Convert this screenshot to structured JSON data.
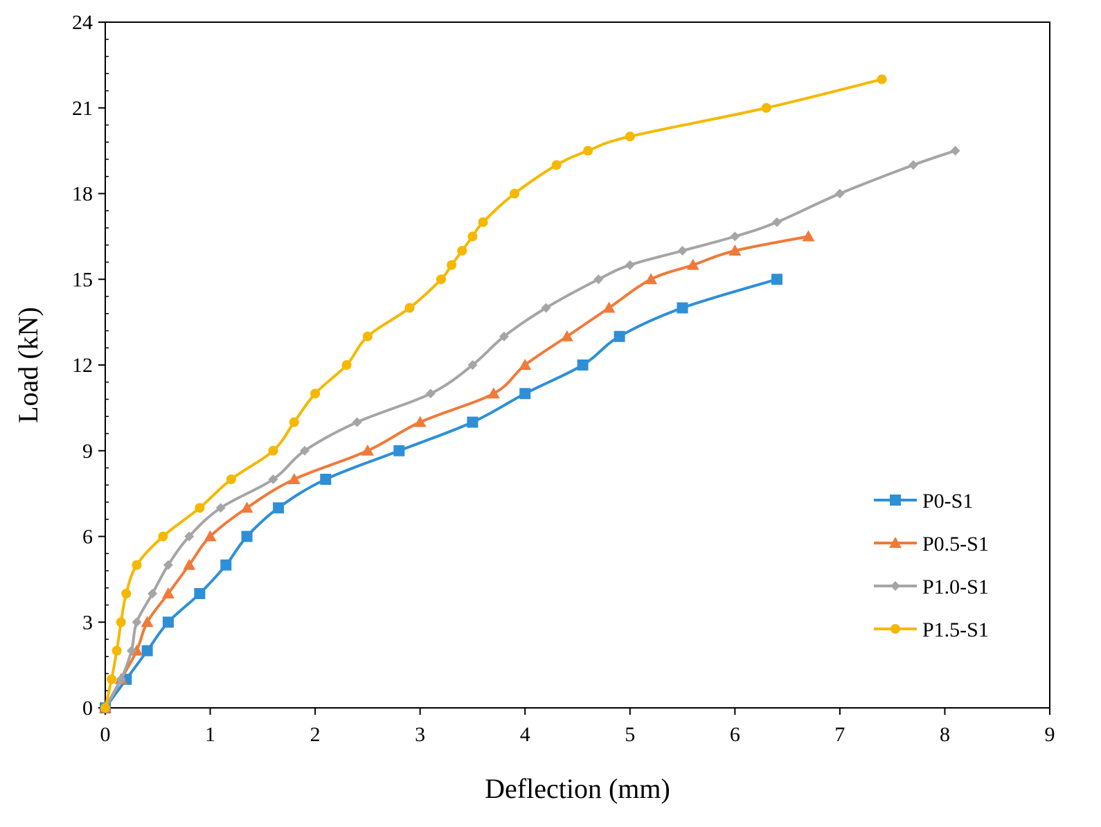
{
  "chart_data": {
    "type": "line",
    "title": "",
    "xlabel": "Deflection (mm)",
    "ylabel": "Load (kN)",
    "xlim": [
      0,
      9
    ],
    "ylim": [
      0,
      24
    ],
    "xticks": [
      0,
      1,
      2,
      3,
      4,
      5,
      6,
      7,
      8,
      9
    ],
    "yticks": [
      0,
      3,
      6,
      9,
      12,
      15,
      18,
      21,
      24
    ],
    "grid": false,
    "legend_position": "bottom-right",
    "series": [
      {
        "name": "P0-S1",
        "color": "#2e8fd6",
        "marker": "square",
        "x": [
          0,
          0.2,
          0.4,
          0.6,
          0.9,
          1.15,
          1.35,
          1.65,
          2.1,
          2.8,
          3.5,
          4.0,
          4.55,
          4.9,
          5.5,
          6.4
        ],
        "y": [
          0,
          1,
          2,
          3,
          4,
          5,
          6,
          7,
          8,
          9,
          10,
          11,
          12,
          13,
          14,
          15
        ]
      },
      {
        "name": "P0.5-S1",
        "color": "#f07a3a",
        "marker": "triangle",
        "x": [
          0,
          0.15,
          0.3,
          0.4,
          0.6,
          0.8,
          1.0,
          1.35,
          1.8,
          2.5,
          3.0,
          3.7,
          4.0,
          4.4,
          4.8,
          5.2,
          5.6,
          6.0,
          6.7
        ],
        "y": [
          0,
          1,
          2,
          3,
          4,
          5,
          6,
          7,
          8,
          9,
          10,
          11,
          12,
          13,
          14,
          15,
          15.5,
          16,
          16.5
        ]
      },
      {
        "name": "P1.0-S1",
        "color": "#a5a5a5",
        "marker": "diamond",
        "x": [
          0,
          0.15,
          0.25,
          0.3,
          0.45,
          0.6,
          0.8,
          1.1,
          1.6,
          1.9,
          2.4,
          3.1,
          3.5,
          3.8,
          4.2,
          4.7,
          5.0,
          5.5,
          6.0,
          6.4,
          7.0,
          7.7,
          8.1
        ],
        "y": [
          0,
          1,
          2,
          3,
          4,
          5,
          6,
          7,
          8,
          9,
          10,
          11,
          12,
          13,
          14,
          15,
          15.5,
          16,
          16.5,
          17,
          18,
          19,
          19.5
        ]
      },
      {
        "name": "P1.5-S1",
        "color": "#f5b800",
        "marker": "circle",
        "x": [
          0,
          0.06,
          0.11,
          0.15,
          0.2,
          0.3,
          0.55,
          0.9,
          1.2,
          1.6,
          1.8,
          2.0,
          2.3,
          2.5,
          2.9,
          3.2,
          3.3,
          3.4,
          3.5,
          3.6,
          3.9,
          4.3,
          4.6,
          5.0,
          6.3,
          7.4
        ],
        "y": [
          0,
          1,
          2,
          3,
          4,
          5,
          6,
          7,
          8,
          9,
          10,
          11,
          12,
          13,
          14,
          15,
          15.5,
          16,
          16.5,
          17,
          18,
          19,
          19.5,
          20,
          21,
          22
        ]
      }
    ]
  }
}
